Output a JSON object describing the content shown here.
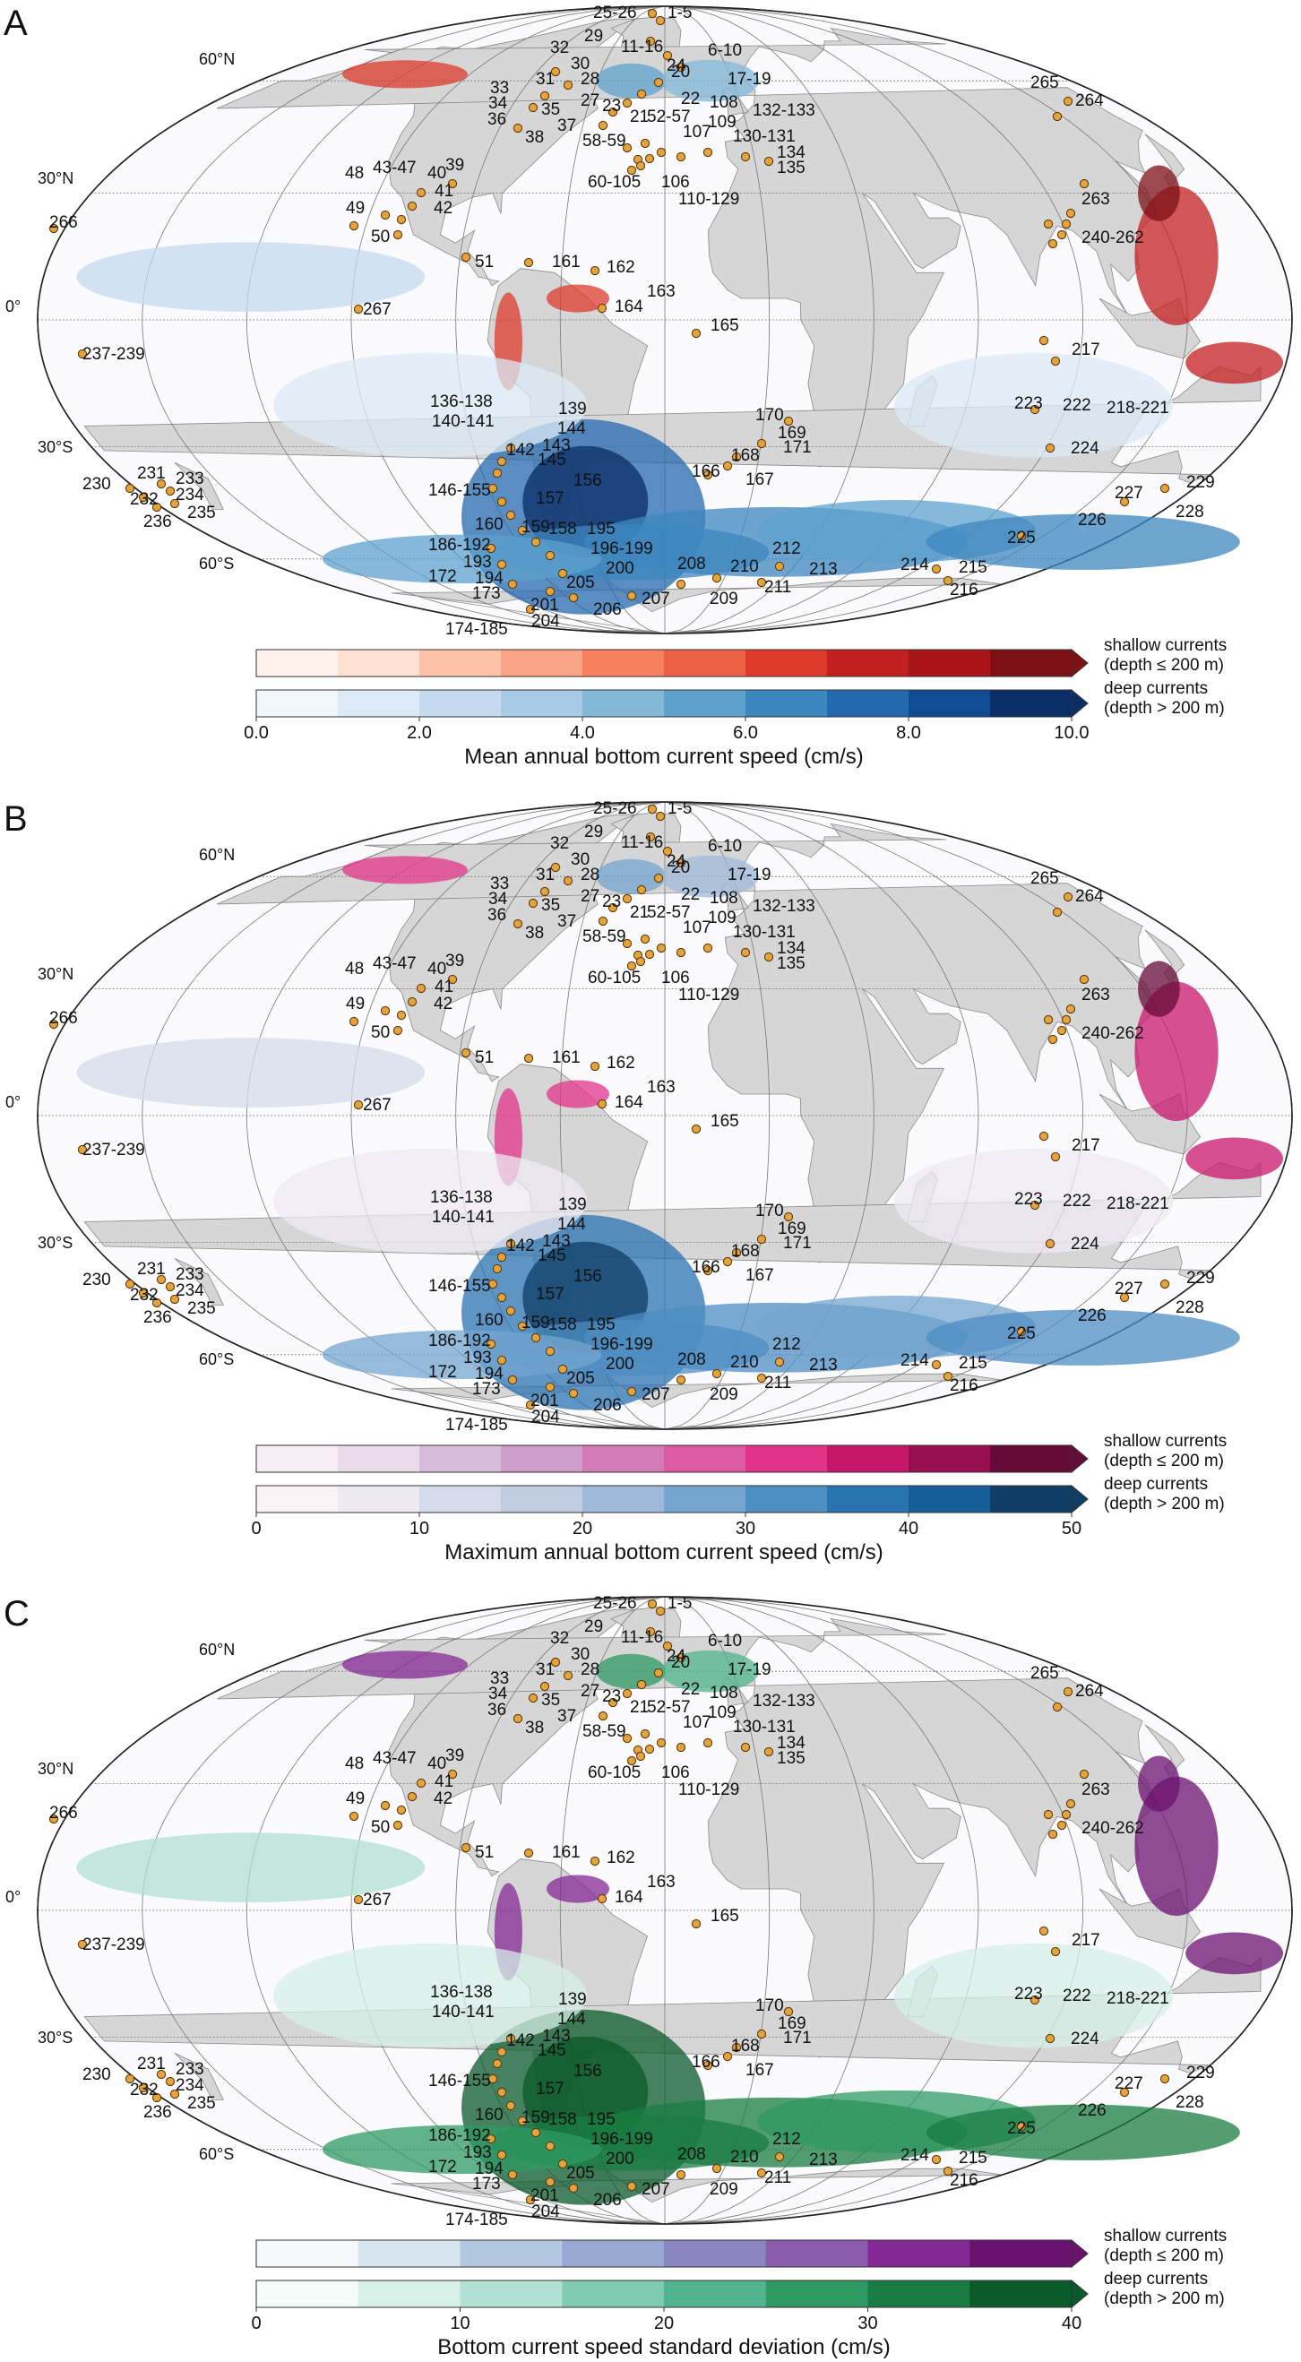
{
  "figure": {
    "label_positions": "12 positions per panel",
    "panels": [
      {
        "letter": "A",
        "variable": "mean",
        "colorbar_title": "Mean annual bottom current speed (cm/s)",
        "ticks": [
          "0.0",
          "2.0",
          "4.0",
          "6.0",
          "8.0",
          "10.0"
        ],
        "shallow_label_1": "shallow currents",
        "shallow_label_2": "(depth ≤ 200 m)",
        "deep_label_1": "deep currents",
        "deep_label_2": "(depth > 200 m)",
        "shallow_colors": [
          "#fff1ec",
          "#fde0d2",
          "#fcc3aa",
          "#fba587",
          "#f6815e",
          "#ee6244",
          "#dd3a2c",
          "#c41f1f",
          "#a91419",
          "#7c1015"
        ],
        "deep_colors": [
          "#f2f7fd",
          "#dce9f6",
          "#c5daee",
          "#a7cbe4",
          "#83b8d9",
          "#5ea1cd",
          "#3d87bf",
          "#2468ad",
          "#104c92",
          "#0a2e66"
        ]
      },
      {
        "letter": "B",
        "variable": "max",
        "colorbar_title": "Maximum annual bottom current speed (cm/s)",
        "ticks": [
          "0",
          "10",
          "20",
          "30",
          "40",
          "50"
        ],
        "shallow_label_1": "shallow currents",
        "shallow_label_2": "(depth ≤ 200 m)",
        "deep_label_1": "deep currents",
        "deep_label_2": "(depth > 200 m)",
        "shallow_colors": [
          "#f8eff6",
          "#eadbeb",
          "#d9bbdc",
          "#cd9ecb",
          "#d37ab9",
          "#dd5aa5",
          "#e2338a",
          "#c8166c",
          "#970f51",
          "#660b37"
        ],
        "deep_colors": [
          "#fbf3f6",
          "#eeeaf3",
          "#d6dbeb",
          "#bfcce2",
          "#9fb9da",
          "#74a5cf",
          "#4d8ec3",
          "#2a73b1",
          "#165c98",
          "#0f3d65"
        ]
      },
      {
        "letter": "C",
        "variable": "sd",
        "colorbar_title": "Bottom current speed standard deviation (cm/s)",
        "ticks": [
          "0",
          "10",
          "20",
          "30",
          "40"
        ],
        "shallow_label_1": "shallow currents",
        "shallow_label_2": "(depth ≤ 200 m)",
        "deep_label_1": "deep currents",
        "deep_label_2": "(depth > 200 m)",
        "shallow_colors": [
          "#f5f9fb",
          "#d5e4ef",
          "#b2c8e1",
          "#97a8d2",
          "#8a84c0",
          "#8a5bab",
          "#852895",
          "#6b1270"
        ],
        "deep_colors": [
          "#f4fbf9",
          "#d6efe7",
          "#b2e0d2",
          "#82cbb3",
          "#52b48e",
          "#2f9a63",
          "#1a7c42",
          "#0a5a2a"
        ]
      }
    ],
    "latitude_labels": [
      "60°N",
      "30°N",
      "0°",
      "30°S",
      "60°S"
    ],
    "site_labels": [
      "1-5",
      "6-10",
      "11-16",
      "17-19",
      "20",
      "21",
      "22",
      "23",
      "24",
      "25-26",
      "27",
      "28",
      "29",
      "30",
      "31",
      "32",
      "33",
      "34",
      "35",
      "36",
      "37",
      "38",
      "39",
      "40",
      "41",
      "42",
      "43-47",
      "48",
      "49",
      "50",
      "51",
      "52-57",
      "58-59",
      "60-105",
      "106",
      "107",
      "108",
      "109",
      "110-129",
      "130-131",
      "132-133",
      "134",
      "135",
      "136-138",
      "139",
      "140-141",
      "142",
      "143",
      "144",
      "145",
      "146-155",
      "156",
      "157",
      "158",
      "159",
      "160",
      "161",
      "162",
      "163",
      "164",
      "165",
      "166",
      "167",
      "168",
      "169",
      "170",
      "171",
      "172",
      "173",
      "174-185",
      "186-192",
      "193",
      "194",
      "195",
      "196-199",
      "200",
      "201",
      "204",
      "205",
      "206",
      "207",
      "208",
      "209",
      "210",
      "211",
      "212",
      "213",
      "214",
      "215",
      "216",
      "217",
      "218-221",
      "222",
      "223",
      "224",
      "225",
      "226",
      "227",
      "228",
      "229",
      "230",
      "231",
      "232",
      "233",
      "234",
      "235",
      "236",
      "237-239",
      "240-262",
      "263",
      "264",
      "265",
      "266",
      "267"
    ]
  },
  "chart_data": [
    {
      "type": "heatmap",
      "title": "",
      "panel": "A",
      "colorbar_title": "Mean annual bottom current speed (cm/s)",
      "colorbar_range": [
        0,
        10
      ],
      "colorbar_ticks": [
        0,
        2,
        4,
        6,
        8,
        10
      ],
      "colorbar_extend": "max",
      "series": [
        {
          "name": "shallow currents (depth ≤ 200 m)",
          "bins": 10
        },
        {
          "name": "deep currents (depth > 200 m)",
          "bins": 10
        }
      ],
      "projection": "Mollweide",
      "graticule_latitudes": [
        "60°N",
        "30°N",
        "0°",
        "30°S",
        "60°S"
      ]
    },
    {
      "type": "heatmap",
      "title": "",
      "panel": "B",
      "colorbar_title": "Maximum annual bottom current speed (cm/s)",
      "colorbar_range": [
        0,
        50
      ],
      "colorbar_ticks": [
        0,
        10,
        20,
        30,
        40,
        50
      ],
      "colorbar_extend": "max",
      "series": [
        {
          "name": "shallow currents (depth ≤ 200 m)",
          "bins": 10
        },
        {
          "name": "deep currents (depth > 200 m)",
          "bins": 10
        }
      ],
      "projection": "Mollweide",
      "graticule_latitudes": [
        "60°N",
        "30°N",
        "0°",
        "30°S",
        "60°S"
      ]
    },
    {
      "type": "heatmap",
      "title": "",
      "panel": "C",
      "colorbar_title": "Bottom current speed standard deviation (cm/s)",
      "colorbar_range": [
        0,
        40
      ],
      "colorbar_ticks": [
        0,
        10,
        20,
        30,
        40
      ],
      "colorbar_extend": "max",
      "series": [
        {
          "name": "shallow currents (depth ≤ 200 m)",
          "bins": 8
        },
        {
          "name": "deep currents (depth > 200 m)",
          "bins": 8
        }
      ],
      "projection": "Mollweide",
      "graticule_latitudes": [
        "60°N",
        "30°N",
        "0°",
        "30°S",
        "60°S"
      ]
    }
  ]
}
